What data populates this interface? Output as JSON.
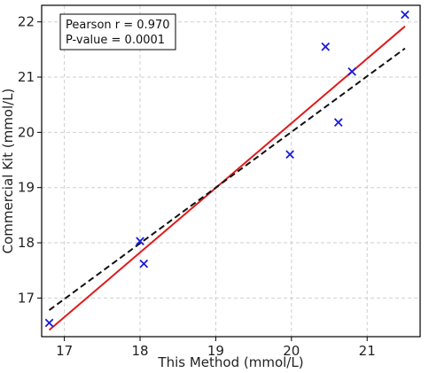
{
  "chart_data": {
    "type": "scatter",
    "title": "",
    "xlabel": "This Method (mmol/L)",
    "ylabel": "Commercial Kit (mmol/L)",
    "xlim": [
      16.7,
      21.7
    ],
    "ylim": [
      16.3,
      22.3
    ],
    "x_ticks": [
      17,
      18,
      19,
      20,
      21
    ],
    "y_ticks": [
      17,
      18,
      19,
      20,
      21,
      22
    ],
    "grid": true,
    "points": [
      {
        "x": 16.8,
        "y": 16.55
      },
      {
        "x": 18.0,
        "y": 18.03
      },
      {
        "x": 18.05,
        "y": 17.62
      },
      {
        "x": 19.98,
        "y": 19.6
      },
      {
        "x": 20.45,
        "y": 21.55
      },
      {
        "x": 20.62,
        "y": 20.18
      },
      {
        "x": 20.8,
        "y": 21.1
      },
      {
        "x": 21.5,
        "y": 22.13
      }
    ],
    "point_marker": "x",
    "point_color": "#1a1adb",
    "lines": [
      {
        "style": "solid",
        "color": "#e01b1b",
        "x": [
          16.8,
          21.5
        ],
        "y": [
          16.42,
          21.92
        ]
      },
      {
        "style": "dashed",
        "color": "#111111",
        "x": [
          16.8,
          21.5
        ],
        "y": [
          16.78,
          21.52
        ]
      }
    ],
    "annotation": {
      "pearson_text": "Pearson r = 0.970",
      "pvalue_text": "P-value = 0.0001",
      "placement": "top-left"
    }
  }
}
